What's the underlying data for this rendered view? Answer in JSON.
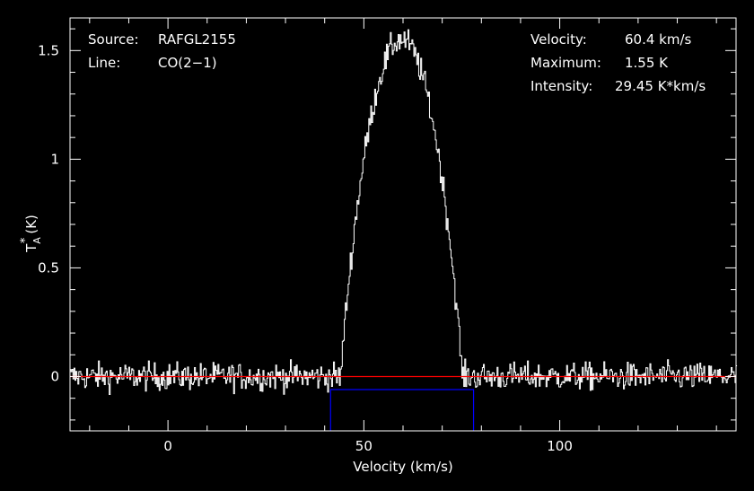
{
  "header": {
    "source_label": "Source:",
    "source_value": "RAFGL2155",
    "line_label": "Line:",
    "line_value": "CO(2−1)",
    "velocity_label": "Velocity:",
    "velocity_value": "60.4 km/s",
    "maximum_label": "Maximum:",
    "maximum_value": "1.55 K",
    "intensity_label": "Intensity:",
    "intensity_value": "29.45 K*km/s"
  },
  "chart_data": {
    "type": "line",
    "title": "",
    "xlabel": "Velocity (km/s)",
    "ylabel_main": "T",
    "ylabel_sup": "*",
    "ylabel_sub": "A",
    "ylabel_unit": "(K)",
    "xlim": [
      -25,
      145
    ],
    "ylim": [
      -0.25,
      1.65
    ],
    "xticks": [
      0,
      50,
      100
    ],
    "yticks": [
      0,
      0.5,
      1,
      1.5
    ],
    "xtick_labels": [
      "0",
      "50",
      "100"
    ],
    "ytick_labels": [
      "0",
      "0.5",
      "1",
      "1.5"
    ],
    "grid": false,
    "colors": {
      "spectrum": "#ffffff",
      "baseline": "#ff0000",
      "window": "#0000ff",
      "axes": "#ffffff"
    },
    "profile": {
      "center_velocity": 60.4,
      "peak": 1.55,
      "v_min": 44,
      "v_max": 75,
      "noise_rms": 0.045
    },
    "baseline": {
      "y": 0
    },
    "integration_window": {
      "v_start": 41.5,
      "v_end": 78,
      "level": -0.06
    }
  }
}
